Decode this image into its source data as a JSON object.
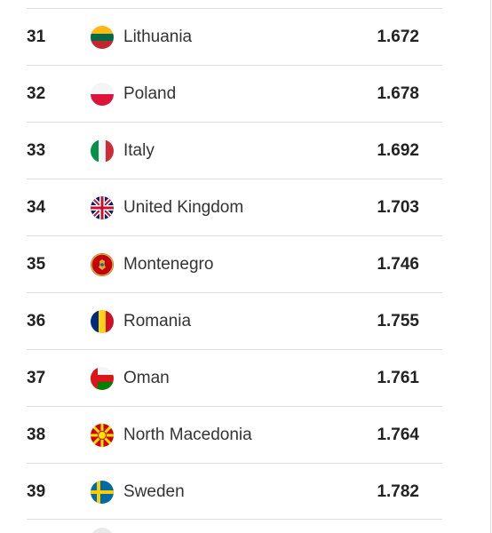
{
  "rows": [
    {
      "rank": "31",
      "country": "Lithuania",
      "score": "1.672",
      "flag_icon": "lithuania-flag-icon"
    },
    {
      "rank": "32",
      "country": "Poland",
      "score": "1.678",
      "flag_icon": "poland-flag-icon"
    },
    {
      "rank": "33",
      "country": "Italy",
      "score": "1.692",
      "flag_icon": "italy-flag-icon"
    },
    {
      "rank": "34",
      "country": "United Kingdom",
      "score": "1.703",
      "flag_icon": "united-kingdom-flag-icon"
    },
    {
      "rank": "35",
      "country": "Montenegro",
      "score": "1.746",
      "flag_icon": "montenegro-flag-icon"
    },
    {
      "rank": "36",
      "country": "Romania",
      "score": "1.755",
      "flag_icon": "romania-flag-icon"
    },
    {
      "rank": "37",
      "country": "Oman",
      "score": "1.761",
      "flag_icon": "oman-flag-icon"
    },
    {
      "rank": "38",
      "country": "North Macedonia",
      "score": "1.764",
      "flag_icon": "north-macedonia-flag-icon"
    },
    {
      "rank": "39",
      "country": "Sweden",
      "score": "1.782",
      "flag_icon": "sweden-flag-icon"
    }
  ],
  "colors": {
    "text": "#222222",
    "divider": "#dedede"
  }
}
